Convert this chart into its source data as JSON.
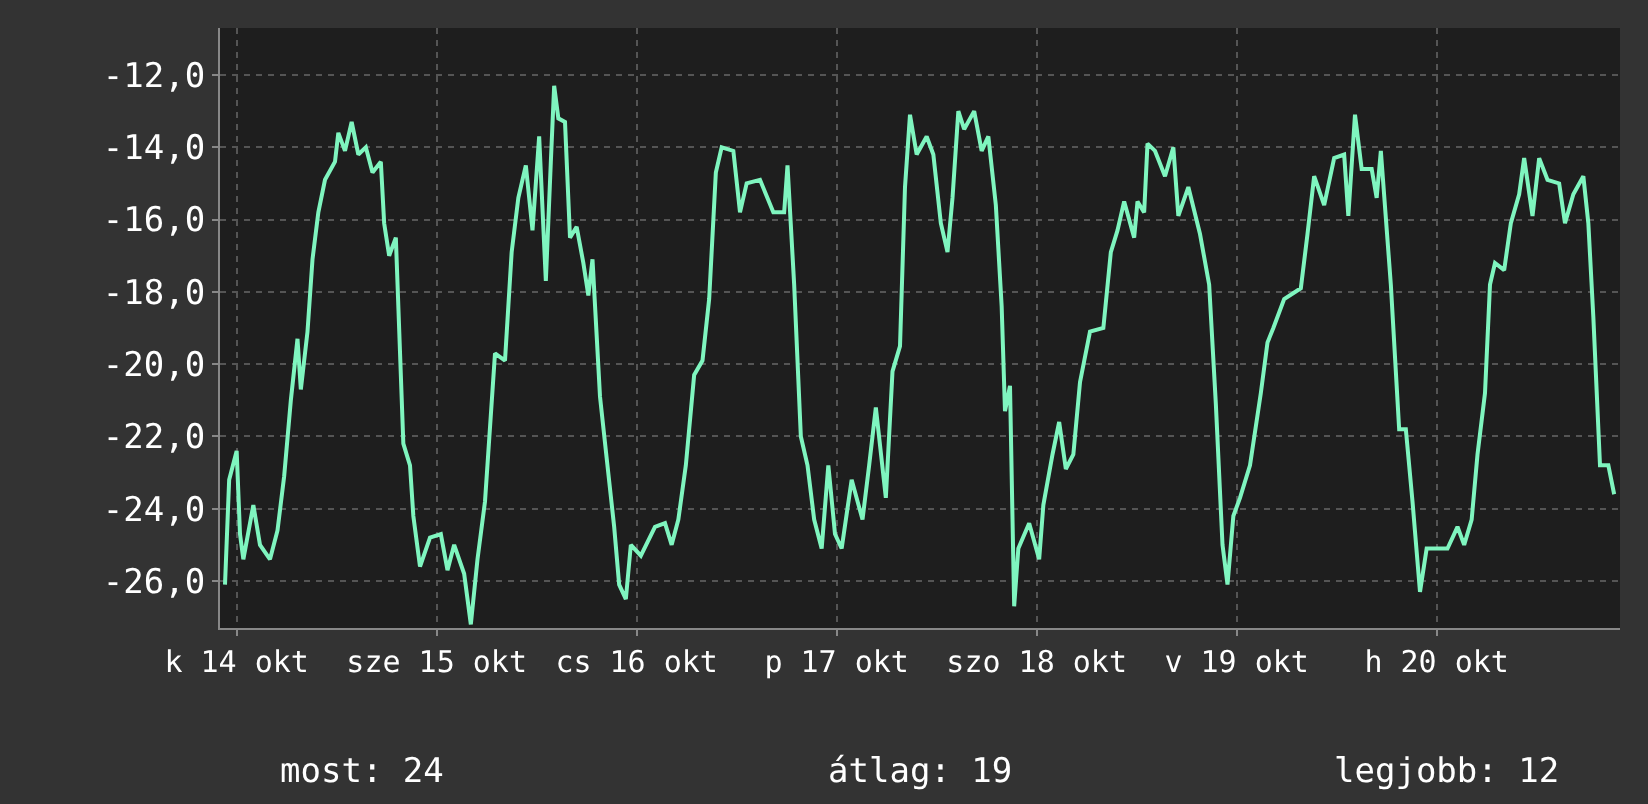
{
  "chart_data": {
    "type": "line",
    "color": "#7ff5bf",
    "line_style": "solid",
    "marker": "none",
    "grid": true,
    "xlim": [
      "--10-14T08:00",
      "--10-21T08:00"
    ],
    "ylim": [
      -27.3,
      -10.7
    ],
    "xticks": [
      {
        "value": "--10-14T10:00",
        "label": "k 14 okt"
      },
      {
        "value": "--10-15T10:00",
        "label": "sze 15 okt"
      },
      {
        "value": "--10-16T10:00",
        "label": "cs 16 okt"
      },
      {
        "value": "--10-17T10:00",
        "label": "p 17 okt"
      },
      {
        "value": "--10-18T10:00",
        "label": "szo 18 okt"
      },
      {
        "value": "--10-19T10:00",
        "label": "v 19 okt"
      },
      {
        "value": "--10-20T10:00",
        "label": "h 20 okt"
      }
    ],
    "yticks": [
      {
        "value": -26,
        "label": "-26,0"
      },
      {
        "value": -24,
        "label": "-24,0"
      },
      {
        "value": -22,
        "label": "-22,0"
      },
      {
        "value": -20,
        "label": "-20,0"
      },
      {
        "value": -18,
        "label": "-18,0"
      },
      {
        "value": -16,
        "label": "-16,0"
      },
      {
        "value": -14,
        "label": "-14,0"
      },
      {
        "value": -12,
        "label": "-12,0"
      }
    ],
    "annotations": [
      "most: 24",
      "átlag: 19",
      "legjobb: 12"
    ],
    "x": [
      "--10-14T08:36",
      "--10-14T09:06",
      "--10-14T10:00",
      "--10-14T10:24",
      "--10-14T10:48",
      "--10-14T12:00",
      "--10-14T12:48",
      "--10-14T14:00",
      "--10-14T14:54",
      "--10-14T15:42",
      "--10-14T16:30",
      "--10-14T17:18",
      "--10-14T17:42",
      "--10-14T18:30",
      "--10-14T19:06",
      "--10-14T19:48",
      "--10-14T20:36",
      "--10-14T21:48",
      "--10-14T22:12",
      "--10-14T23:00",
      "--10-14T23:48",
      "--10-15T00:36",
      "--10-15T01:30",
      "--10-15T02:18",
      "--10-15T03:18",
      "--10-15T03:42",
      "--10-15T04:18",
      "--10-15T05:06",
      "--10-15T06:00",
      "--10-15T06:48",
      "--10-15T07:12",
      "--10-15T08:00",
      "--10-15T09:12",
      "--10-15T10:30",
      "--10-15T11:18",
      "--10-15T12:06",
      "--10-15T13:18",
      "--10-15T14:06",
      "--10-15T14:54",
      "--10-15T15:48",
      "--10-15T17:00",
      "--10-15T18:12",
      "--10-15T19:00",
      "--10-15T19:48",
      "--10-15T20:42",
      "--10-15T21:30",
      "--10-15T22:18",
      "--10-15T23:06",
      "--10-15T23:42",
      "--10-16T00:06",
      "--10-16T00:36",
      "--10-16T01:24",
      "--10-16T02:00",
      "--10-16T02:48",
      "--10-16T03:36",
      "--10-16T04:12",
      "--10-16T04:42",
      "--10-16T05:36",
      "--10-16T06:24",
      "--10-16T07:18",
      "--10-16T07:54",
      "--10-16T08:42",
      "--10-16T09:18",
      "--10-16T10:30",
      "--10-16T12:12",
      "--10-16T13:24",
      "--10-16T14:12",
      "--10-16T15:00",
      "--10-16T15:54",
      "--10-16T16:54",
      "--10-16T17:54",
      "--10-16T18:42",
      "--10-16T19:30",
      "--10-16T20:12",
      "--10-16T21:36",
      "--10-16T22:24",
      "--10-16T23:12",
      "--10-17T00:48",
      "--10-17T02:24",
      "--10-17T03:42",
      "--10-17T04:06",
      "--10-17T04:54",
      "--10-17T05:42",
      "--10-17T06:30",
      "--10-17T07:18",
      "--10-17T08:12",
      "--10-17T09:00",
      "--10-17T09:48",
      "--10-17T10:36",
      "--10-17T11:48",
      "--10-17T13:06",
      "--10-17T13:54",
      "--10-17T14:42",
      "--10-17T15:54",
      "--10-17T16:42",
      "--10-17T17:36",
      "--10-17T18:12",
      "--10-17T18:48",
      "--10-17T19:36",
      "--10-17T20:48",
      "--10-17T21:36",
      "--10-17T22:30",
      "--10-17T23:18",
      "--10-17T23:54",
      "--10-18T00:36",
      "--10-18T01:18",
      "--10-18T02:30",
      "--10-18T03:24",
      "--10-18T04:12",
      "--10-18T05:06",
      "--10-18T05:48",
      "--10-18T06:12",
      "--10-18T06:48",
      "--10-18T07:18",
      "--10-18T07:48",
      "--10-18T09:06",
      "--10-18T10:18",
      "--10-18T10:48",
      "--10-18T11:54",
      "--10-18T12:42",
      "--10-18T13:30",
      "--10-18T14:24",
      "--10-18T15:12",
      "--10-18T16:24",
      "--10-18T18:00",
      "--10-18T18:54",
      "--10-18T19:42",
      "--10-18T20:30",
      "--10-18T21:42",
      "--10-18T22:06",
      "--10-18T22:54",
      "--10-18T23:18",
      "--10-19T00:12",
      "--10-19T01:24",
      "--10-19T02:24",
      "--10-19T03:00",
      "--10-19T04:12",
      "--10-19T05:36",
      "--10-19T06:42",
      "--10-19T07:30",
      "--10-19T08:18",
      "--10-19T08:54",
      "--10-19T09:36",
      "--10-19T10:24",
      "--10-19T11:36",
      "--10-19T12:54",
      "--10-19T13:42",
      "--10-19T14:24",
      "--10-19T15:42",
      "--10-19T17:42",
      "--10-19T18:30",
      "--10-19T19:18",
      "--10-19T20:30",
      "--10-19T21:42",
      "--10-19T22:54",
      "--10-19T23:24",
      "--10-20T00:12",
      "--10-20T01:00",
      "--10-20T02:12",
      "--10-20T02:48",
      "--10-20T03:18",
      "--10-20T04:30",
      "--10-20T05:30",
      "--10-20T06:18",
      "--10-20T07:06",
      "--10-20T08:00",
      "--10-20T08:48",
      "--10-20T11:18",
      "--10-20T12:30",
      "--10-20T13:18",
      "--10-20T14:12",
      "--10-20T14:54",
      "--10-20T15:48",
      "--10-20T16:24",
      "--10-20T17:00",
      "--10-20T18:06",
      "--10-20T18:54",
      "--10-20T19:54",
      "--10-20T20:30",
      "--10-20T21:30",
      "--10-20T22:18",
      "--10-20T23:18",
      "--10-21T00:42",
      "--10-21T01:24",
      "--10-21T02:24",
      "--10-21T03:36",
      "--10-21T04:12",
      "--10-21T04:48",
      "--10-21T05:36",
      "--10-21T06:36",
      "--10-21T07:18"
    ],
    "values": [
      -26.1,
      -23.2,
      -22.4,
      -24.7,
      -25.4,
      -23.9,
      -25.0,
      -25.4,
      -24.6,
      -23.1,
      -21.0,
      -19.3,
      -20.7,
      -19.1,
      -17.1,
      -15.8,
      -14.9,
      -14.4,
      -13.6,
      -14.1,
      -13.3,
      -14.2,
      -14.0,
      -14.7,
      -14.4,
      -16.1,
      -17.0,
      -16.5,
      -22.2,
      -22.8,
      -24.2,
      -25.6,
      -24.8,
      -24.7,
      -25.7,
      -25.0,
      -25.8,
      -27.2,
      -25.4,
      -23.8,
      -19.7,
      -19.9,
      -16.9,
      -15.4,
      -14.5,
      -16.3,
      -13.7,
      -17.7,
      -14.4,
      -12.3,
      -13.2,
      -13.3,
      -16.5,
      -16.2,
      -17.2,
      -18.1,
      -17.1,
      -20.9,
      -22.6,
      -24.5,
      -26.1,
      -26.5,
      -25.0,
      -25.3,
      -24.5,
      -24.4,
      -25.0,
      -24.3,
      -22.8,
      -20.3,
      -19.9,
      -18.2,
      -14.7,
      -14.0,
      -14.1,
      -15.8,
      -15.0,
      -14.9,
      -15.8,
      -15.8,
      -14.5,
      -17.8,
      -22.0,
      -22.8,
      -24.3,
      -25.1,
      -22.8,
      -24.7,
      -25.1,
      -23.2,
      -24.3,
      -22.8,
      -21.2,
      -23.7,
      -20.2,
      -19.5,
      -15.1,
      -13.1,
      -14.2,
      -13.7,
      -14.2,
      -16.1,
      -16.9,
      -15.4,
      -13.0,
      -13.5,
      -13.0,
      -14.1,
      -13.7,
      -15.6,
      -18.4,
      -21.3,
      -20.6,
      -26.7,
      -25.1,
      -24.4,
      -25.4,
      -23.9,
      -22.5,
      -21.6,
      -22.9,
      -22.5,
      -20.5,
      -19.1,
      -19.0,
      -16.9,
      -16.3,
      -15.5,
      -16.5,
      -15.5,
      -15.8,
      -13.9,
      -14.1,
      -14.8,
      -14.0,
      -15.9,
      -15.1,
      -16.4,
      -17.8,
      -21.1,
      -25.0,
      -26.1,
      -24.2,
      -23.7,
      -22.8,
      -20.8,
      -19.4,
      -19.0,
      -18.2,
      -17.9,
      -16.4,
      -14.8,
      -15.6,
      -14.3,
      -14.2,
      -15.9,
      -13.1,
      -14.6,
      -14.6,
      -15.4,
      -14.1,
      -17.8,
      -21.8,
      -21.8,
      -23.8,
      -26.3,
      -25.1,
      -25.1,
      -24.5,
      -25.0,
      -24.3,
      -22.5,
      -20.8,
      -17.8,
      -17.2,
      -17.4,
      -16.1,
      -15.3,
      -14.3,
      -15.9,
      -14.3,
      -14.9,
      -15.0,
      -16.1,
      -15.3,
      -14.8,
      -16.1,
      -18.7,
      -22.8,
      -22.8,
      -23.6
    ]
  }
}
